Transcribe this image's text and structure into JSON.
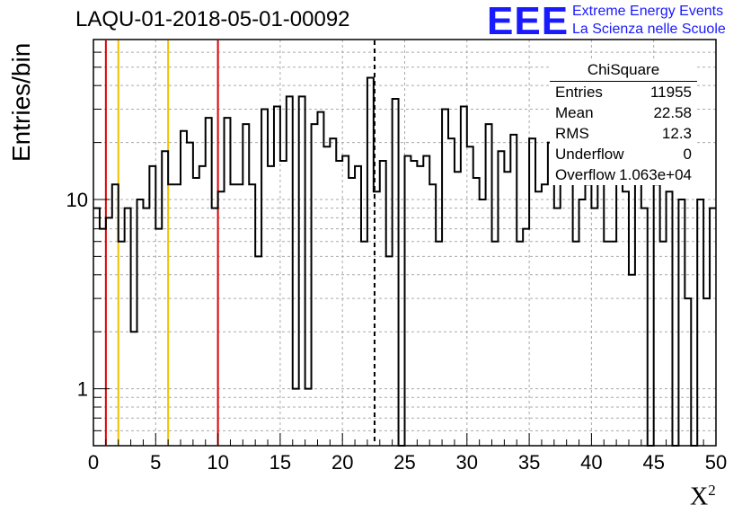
{
  "title": "LAQU-01-2018-05-01-00092",
  "logo": {
    "mark": "EEE",
    "line1": "Extreme Energy Events",
    "line2": "La Scienza nelle Scuole"
  },
  "chart_data": {
    "type": "histogram",
    "xlabel": "X",
    "xlabel_sup": "2",
    "ylabel": "Entries/bin",
    "xlim": [
      0,
      50
    ],
    "ylim": [
      0.5,
      70
    ],
    "yscale": "log",
    "x_ticks": [
      "0",
      "5",
      "10",
      "15",
      "20",
      "25",
      "30",
      "35",
      "40",
      "45",
      "50"
    ],
    "y_ticks": [
      "1",
      "10"
    ],
    "grid": true,
    "bin_width": 0.5,
    "values": [
      9,
      7,
      8,
      12,
      6,
      9,
      2,
      10,
      9,
      15,
      7,
      18,
      12,
      12,
      23,
      20,
      13,
      15,
      27,
      9,
      11,
      27,
      12,
      12,
      25,
      12,
      5,
      30,
      15,
      31,
      16,
      35,
      1,
      35,
      1,
      25,
      29,
      19,
      21,
      16,
      17,
      13,
      15,
      6,
      44,
      11,
      16,
      5,
      34,
      0,
      17,
      16,
      15,
      17,
      12,
      6,
      30,
      21,
      14,
      31,
      19,
      13,
      10,
      25,
      6,
      18,
      14,
      22,
      6,
      7,
      21,
      11,
      12,
      20,
      9,
      13,
      15,
      6,
      10,
      12,
      9,
      19,
      6,
      6,
      13,
      11,
      4,
      18,
      9,
      0,
      12,
      6,
      11,
      0,
      10,
      3,
      0,
      10,
      3,
      9,
      9
    ],
    "lines": [
      {
        "x": 1,
        "color": "#dd0000"
      },
      {
        "x": 2,
        "color": "#f0c000"
      },
      {
        "x": 6,
        "color": "#f0c000"
      },
      {
        "x": 10,
        "color": "#dd0000"
      },
      {
        "x": 22.58,
        "color": "#000000",
        "dashed": true
      }
    ]
  },
  "stats": {
    "name": "ChiSquare",
    "rows": [
      {
        "label": "Entries",
        "value": "11955"
      },
      {
        "label": "Mean",
        "value": "22.58"
      },
      {
        "label": "RMS",
        "value": "12.3"
      },
      {
        "label": "Underflow",
        "value": "0"
      },
      {
        "label": "Overflow",
        "value": "1.063e+04"
      }
    ]
  }
}
